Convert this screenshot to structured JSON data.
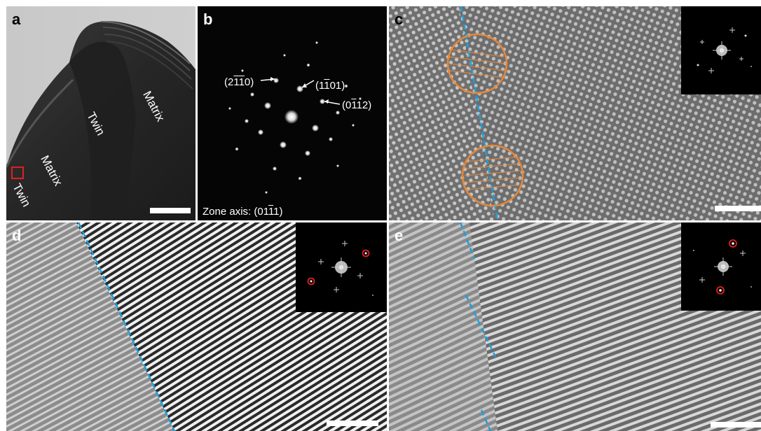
{
  "panels": {
    "a": {
      "label": "a",
      "regions": [
        "Twin",
        "Matrix",
        "Twin",
        "Matrix"
      ]
    },
    "b": {
      "label": "b",
      "spots": [
        {
          "pre": "(2",
          "o1": "1",
          "mid": "",
          "o2": "1",
          "post": "0)"
        },
        {
          "pre": "(1",
          "o1": "1",
          "mid": "",
          "o2": "",
          "post": "01)"
        },
        {
          "pre": "(0",
          "o1": "1",
          "mid": "",
          "o2": "",
          "post": "12)"
        }
      ],
      "zone": {
        "pre": "Zone axis: (01",
        "o1": "1",
        "post": "1)"
      }
    },
    "c": {
      "label": "c"
    },
    "d": {
      "label": "d"
    },
    "e": {
      "label": "e"
    }
  },
  "colors": {
    "boundary": "#1aa0e0",
    "circle": "#e8893a",
    "fft_mask": "#e02020",
    "square": "#e02020"
  }
}
